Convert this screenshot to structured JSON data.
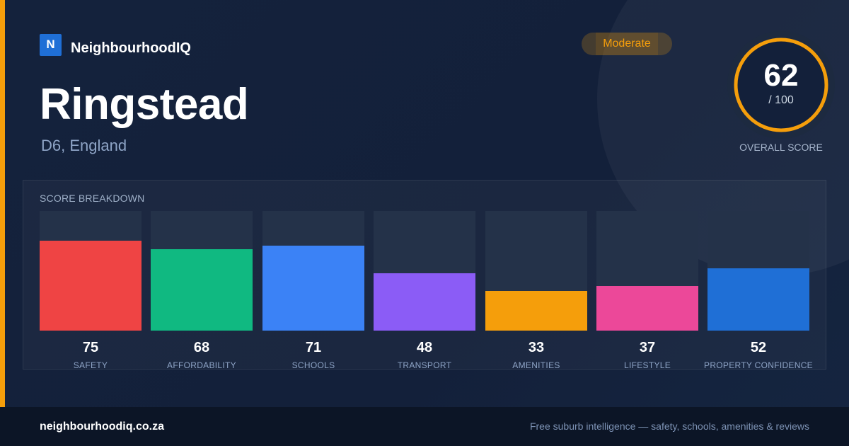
{
  "brand": {
    "logo_letter": "N",
    "name": "NeighbourhoodIQ"
  },
  "badge": {
    "label": "Moderate",
    "color": "#f59e0b"
  },
  "location": {
    "name": "Ringstead",
    "region": "D6, England"
  },
  "overall": {
    "score": "62",
    "max_label": "/ 100",
    "label": "OVERALL SCORE",
    "fraction": 0.62,
    "ring_color": "#f59e0b"
  },
  "breakdown": {
    "title": "SCORE BREAKDOWN"
  },
  "chart_data": {
    "type": "bar",
    "title": "SCORE BREAKDOWN",
    "ylim": [
      0,
      100
    ],
    "categories": [
      "SAFETY",
      "AFFORDABILITY",
      "SCHOOLS",
      "TRANSPORT",
      "AMENITIES",
      "LIFESTYLE",
      "PROPERTY CONFIDENCE"
    ],
    "values": [
      75,
      68,
      71,
      48,
      33,
      37,
      52
    ],
    "colors": [
      "#ef4444",
      "#10b981",
      "#3b82f6",
      "#8b5cf6",
      "#f59e0b",
      "#ec4899",
      "#1f6fd6"
    ]
  },
  "footer": {
    "site": "neighbourhoodiq.co.za",
    "tagline": "Free suburb intelligence — safety, schools, amenities & reviews"
  }
}
